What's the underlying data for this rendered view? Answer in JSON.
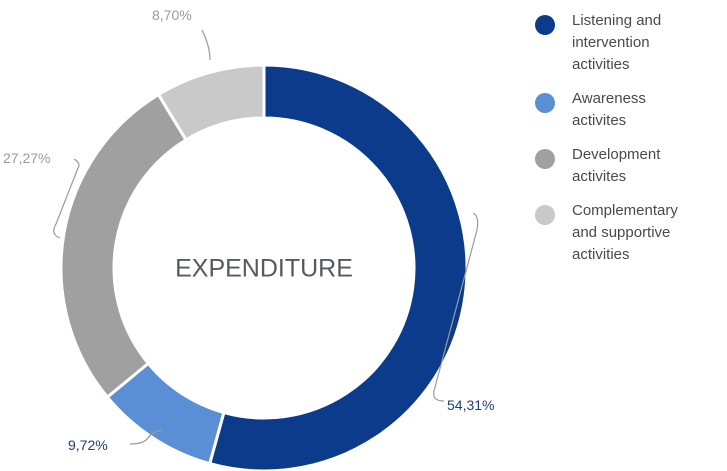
{
  "chart_data": {
    "type": "pie",
    "center_label": "EXPENDITURE",
    "slices": [
      {
        "legend": "Listening and\nintervention\nactivities",
        "value": 54.31,
        "label": "54,31%",
        "color": "#0d3b8c"
      },
      {
        "legend": "Awareness\nactivites",
        "value": 9.72,
        "label": "9,72%",
        "color": "#5a8fd6"
      },
      {
        "legend": "Development\nactivites",
        "value": 27.27,
        "label": "27,27%",
        "color": "#a0a0a0"
      },
      {
        "legend": "Complementary\nand supportive\nactivities",
        "value": 8.7,
        "label": "8,70%",
        "color": "#c9c9c9"
      }
    ],
    "label_colors": {
      "dark_text": "#1f3f7a",
      "gray_text": "#9a9a9a"
    },
    "legend_position": "right"
  }
}
